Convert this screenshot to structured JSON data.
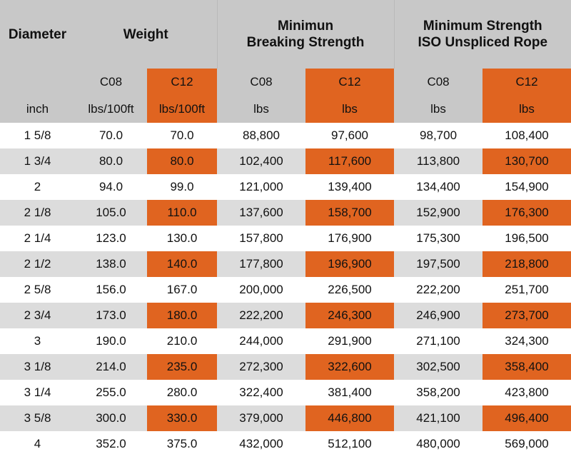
{
  "header": {
    "diameter": "Diameter",
    "weight": "Weight",
    "breaking_line1": "Minimun",
    "breaking_line2": "Breaking Strength",
    "iso_line1": "Minimum Strength",
    "iso_line2": "ISO Unspliced Rope",
    "c08": "C08",
    "c12": "C12",
    "unit_inch": "inch",
    "unit_weight": "lbs/100ft",
    "unit_lbs": "lbs"
  },
  "colors": {
    "orange": "#e06420",
    "header_gray": "#c8c8c8",
    "stripe_gray": "#dcdcdc"
  },
  "rows": [
    [
      "1 5/8",
      "70.0",
      "70.0",
      "88,800",
      "97,600",
      "98,700",
      "108,400"
    ],
    [
      "1 3/4",
      "80.0",
      "80.0",
      "102,400",
      "117,600",
      "113,800",
      "130,700"
    ],
    [
      "2",
      "94.0",
      "99.0",
      "121,000",
      "139,400",
      "134,400",
      "154,900"
    ],
    [
      "2 1/8",
      "105.0",
      "110.0",
      "137,600",
      "158,700",
      "152,900",
      "176,300"
    ],
    [
      "2 1/4",
      "123.0",
      "130.0",
      "157,800",
      "176,900",
      "175,300",
      "196,500"
    ],
    [
      "2 1/2",
      "138.0",
      "140.0",
      "177,800",
      "196,900",
      "197,500",
      "218,800"
    ],
    [
      "2 5/8",
      "156.0",
      "167.0",
      "200,000",
      "226,500",
      "222,200",
      "251,700"
    ],
    [
      "2 3/4",
      "173.0",
      "180.0",
      "222,200",
      "246,300",
      "246,900",
      "273,700"
    ],
    [
      "3",
      "190.0",
      "210.0",
      "244,000",
      "291,900",
      "271,100",
      "324,300"
    ],
    [
      "3 1/8",
      "214.0",
      "235.0",
      "272,300",
      "322,600",
      "302,500",
      "358,400"
    ],
    [
      "3 1/4",
      "255.0",
      "280.0",
      "322,400",
      "381,400",
      "358,200",
      "423,800"
    ],
    [
      "3 5/8",
      "300.0",
      "330.0",
      "379,000",
      "446,800",
      "421,100",
      "496,400"
    ],
    [
      "4",
      "352.0",
      "375.0",
      "432,000",
      "512,100",
      "480,000",
      "569,000"
    ]
  ]
}
